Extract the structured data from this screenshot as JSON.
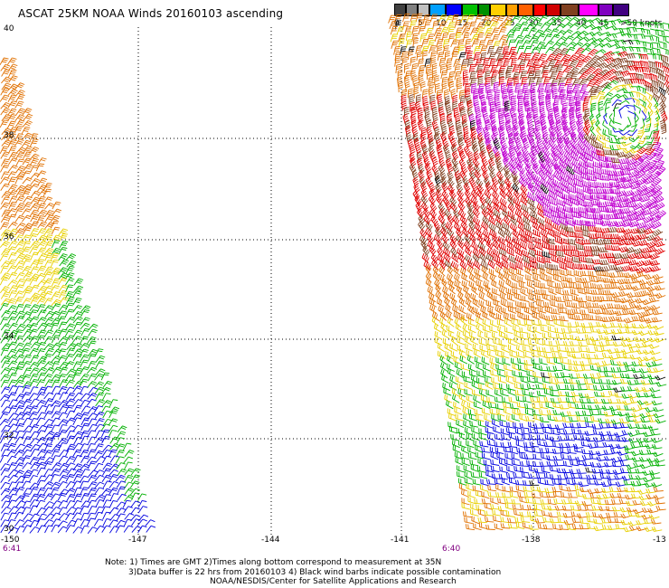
{
  "title": "ASCAT 25KM NOAA Winds 20160103 ascending",
  "colorbar": {
    "colors": [
      "#404040",
      "#808080",
      "#c0c0c0",
      "#00a0ff",
      "#0000ff",
      "#00c000",
      "#009000",
      "#ffd000",
      "#ffa000",
      "#ff6000",
      "#ff0000",
      "#d00000",
      "#804020",
      "#ff00ff",
      "#8000c0",
      "#400080"
    ],
    "labels": [
      "0",
      "5",
      "10",
      "15",
      "20",
      "25",
      "30",
      "35",
      "40",
      "45",
      ">50 knots"
    ],
    "unit": "knots"
  },
  "axes": {
    "x_ticks": [
      "-150",
      "-147",
      "-144",
      "-141",
      "-138",
      "-13"
    ],
    "y_ticks": [
      "40",
      "38",
      "36",
      "34",
      "32",
      "30"
    ],
    "grid": "dotted"
  },
  "pass_times": [
    "6:41",
    "6:40"
  ],
  "notes": {
    "line1": "Note: 1) Times are GMT 2)Times along bottom correspond to measurement at 35N",
    "line2": "3)Data buffer is 22 hrs from 20160103 4) Black wind barbs indicate possible contamination",
    "line3": "NOAA/NESDIS/Center for Satellite Applications and Research"
  },
  "wind_palette": {
    "blue": "#0000e0",
    "green": "#00b000",
    "yellow": "#e8d000",
    "orange": "#e07000",
    "red": "#e00000",
    "brown": "#804020",
    "magenta": "#c000d0",
    "black": "#000000"
  }
}
